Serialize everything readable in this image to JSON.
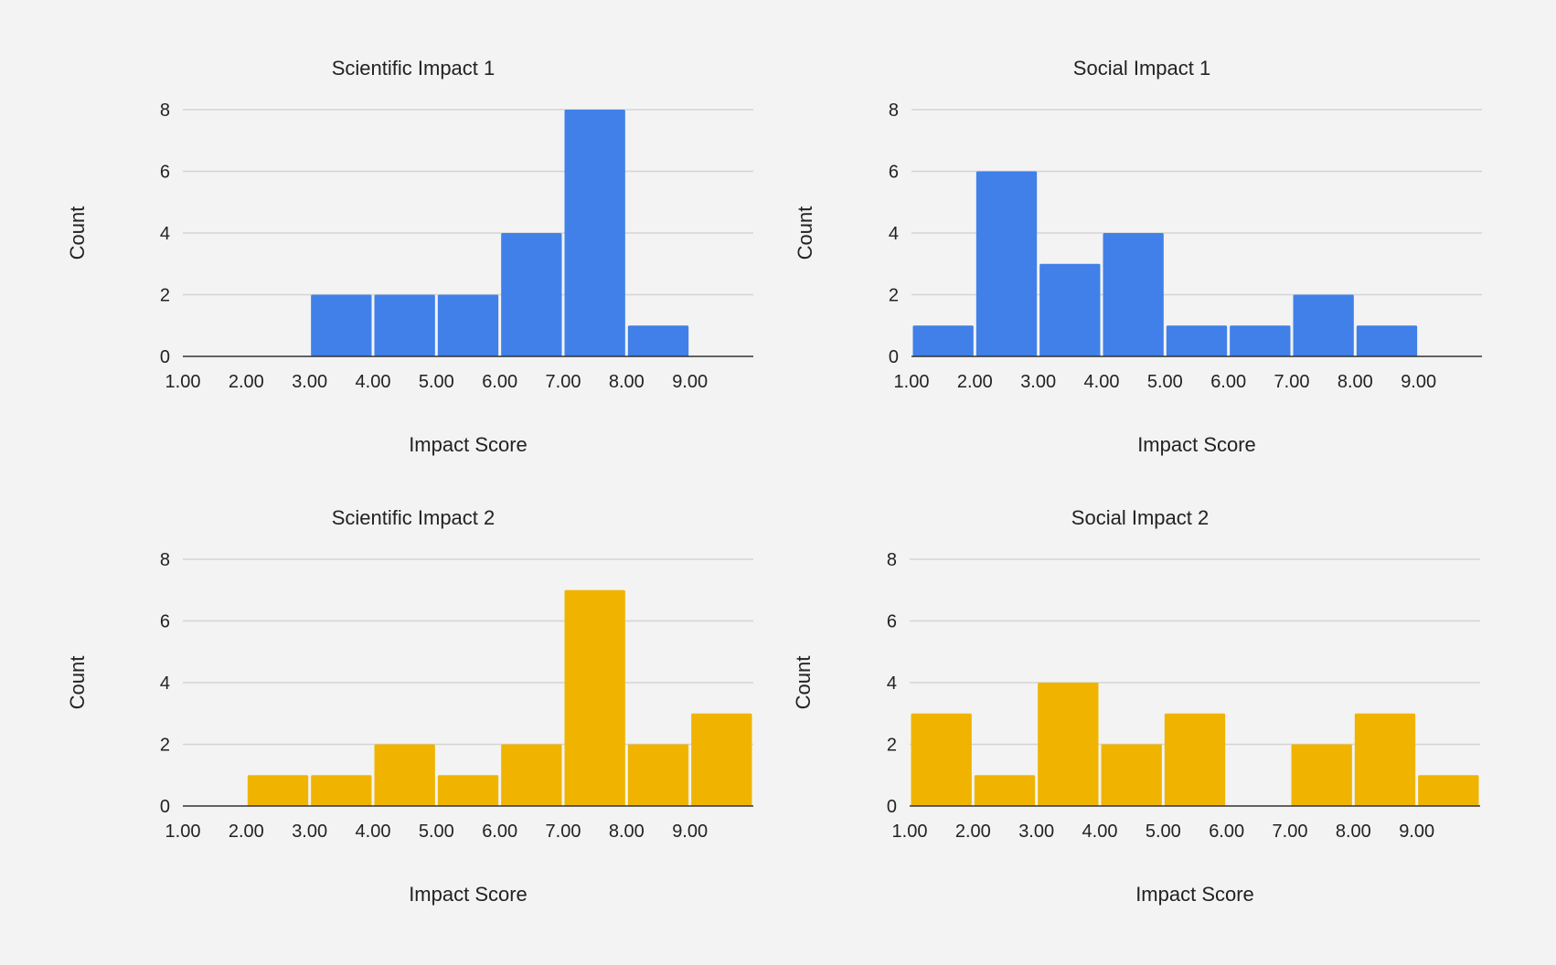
{
  "chart_data": [
    {
      "type": "bar",
      "title": "Scientific Impact 1",
      "xlabel": "Impact Score",
      "ylabel": "Count",
      "bin_edges": [
        1,
        2,
        3,
        4,
        5,
        6,
        7,
        8,
        9,
        10
      ],
      "x_tick_labels": [
        "1.00",
        "2.00",
        "3.00",
        "4.00",
        "5.00",
        "6.00",
        "7.00",
        "8.00",
        "9.00"
      ],
      "y_ticks": [
        0,
        2,
        4,
        6,
        8
      ],
      "values": [
        0,
        0,
        2,
        2,
        2,
        4,
        8,
        1,
        0
      ],
      "xlim": [
        1,
        10
      ],
      "ylim": [
        0,
        8
      ],
      "color": "#4080e8",
      "grid": true
    },
    {
      "type": "bar",
      "title": "Social Impact 1",
      "xlabel": "Impact Score",
      "ylabel": "Count",
      "bin_edges": [
        1,
        2,
        3,
        4,
        5,
        6,
        7,
        8,
        9,
        10
      ],
      "x_tick_labels": [
        "1.00",
        "2.00",
        "3.00",
        "4.00",
        "5.00",
        "6.00",
        "7.00",
        "8.00",
        "9.00"
      ],
      "y_ticks": [
        0,
        2,
        4,
        6,
        8
      ],
      "values": [
        1,
        6,
        3,
        4,
        1,
        1,
        2,
        1,
        0
      ],
      "xlim": [
        1,
        10
      ],
      "ylim": [
        0,
        8
      ],
      "color": "#4080e8",
      "grid": true
    },
    {
      "type": "bar",
      "title": "Scientific Impact 2",
      "xlabel": "Impact Score",
      "ylabel": "Count",
      "bin_edges": [
        1,
        2,
        3,
        4,
        5,
        6,
        7,
        8,
        9,
        10
      ],
      "x_tick_labels": [
        "1.00",
        "2.00",
        "3.00",
        "4.00",
        "5.00",
        "6.00",
        "7.00",
        "8.00",
        "9.00"
      ],
      "y_ticks": [
        0,
        2,
        4,
        6,
        8
      ],
      "values": [
        0,
        1,
        1,
        2,
        1,
        2,
        7,
        2,
        3
      ],
      "xlim": [
        1,
        10
      ],
      "ylim": [
        0,
        8
      ],
      "color": "#f0b400",
      "grid": true
    },
    {
      "type": "bar",
      "title": "Social Impact 2",
      "xlabel": "Impact Score",
      "ylabel": "Count",
      "bin_edges": [
        1,
        2,
        3,
        4,
        5,
        6,
        7,
        8,
        9,
        10
      ],
      "x_tick_labels": [
        "1.00",
        "2.00",
        "3.00",
        "4.00",
        "5.00",
        "6.00",
        "7.00",
        "8.00",
        "9.00"
      ],
      "y_ticks": [
        0,
        2,
        4,
        6,
        8
      ],
      "values": [
        3,
        1,
        4,
        2,
        3,
        0,
        2,
        3,
        1
      ],
      "xlim": [
        1,
        10
      ],
      "ylim": [
        0,
        8
      ],
      "color": "#f0b400",
      "grid": true
    }
  ]
}
